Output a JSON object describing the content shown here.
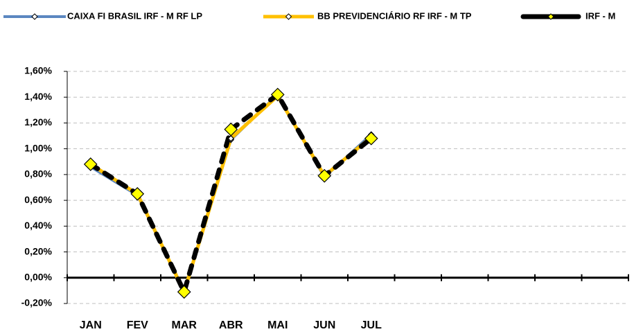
{
  "chart_data": {
    "type": "line",
    "categories": [
      "JAN",
      "FEV",
      "MAR",
      "ABR",
      "MAI",
      "JUN",
      "JUL",
      null,
      null,
      null,
      null,
      null
    ],
    "series": [
      {
        "name": "CAIXA FI BRASIL IRF - M RF LP",
        "color": "#5b87c0",
        "width": 4,
        "dashed": false,
        "marker_color": "#ffffff",
        "marker_size": 4,
        "values": [
          0.86,
          0.64,
          -0.1,
          1.07,
          1.42,
          0.78,
          1.11,
          null,
          null,
          null,
          null,
          null
        ]
      },
      {
        "name": "BB PREVIDENCIÁRIO RF IRF - M TP",
        "color": "#ffc000",
        "width": 5,
        "dashed": false,
        "marker_color": "#ffffff",
        "marker_size": 4,
        "values": [
          0.88,
          0.65,
          -0.11,
          1.08,
          1.41,
          0.79,
          1.09,
          null,
          null,
          null,
          null,
          null
        ]
      },
      {
        "name": "IRF - M",
        "color": "#000000",
        "width": 7,
        "dashed": true,
        "marker_color": "#ffff00",
        "marker_size": 9,
        "values": [
          0.88,
          0.65,
          -0.11,
          1.15,
          1.42,
          0.79,
          1.08,
          null,
          null,
          null,
          null,
          null
        ]
      }
    ],
    "ylim": [
      -0.2,
      1.6
    ],
    "yticks": [
      {
        "value": -0.2,
        "label": "-0,20%"
      },
      {
        "value": 0,
        "label": "0,00%"
      },
      {
        "value": 0.2,
        "label": "0,20%"
      },
      {
        "value": 0.4,
        "label": "0,40%"
      },
      {
        "value": 0.6,
        "label": "0,60%"
      },
      {
        "value": 0.8,
        "label": "0,80%"
      },
      {
        "value": 1.0,
        "label": "1,00%"
      },
      {
        "value": 1.2,
        "label": "1,20%"
      },
      {
        "value": 1.4,
        "label": "1,40%"
      },
      {
        "value": 1.6,
        "label": "1,60%"
      }
    ],
    "grid": true,
    "legend": "top"
  }
}
